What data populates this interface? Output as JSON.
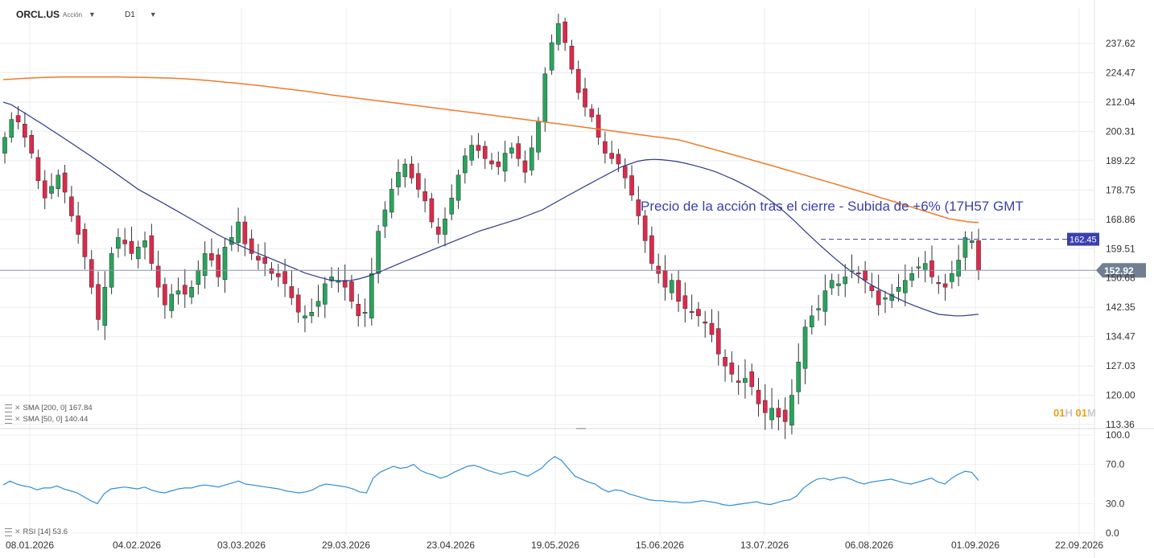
{
  "header": {
    "symbol": "ORCL.US",
    "asset_type": "Acción",
    "timeframe": "D1"
  },
  "indicators": {
    "sma200": "SMA [200, 0] 167.84",
    "sma50": "SMA [50, 0] 140.44",
    "rsi": "RSI [14] 53.6"
  },
  "timeframe_toggle": {
    "num1": "01",
    "unit1": "H",
    "num2": "01",
    "unit2": "M"
  },
  "colors": {
    "up": "#26a65b",
    "down": "#e0284a",
    "sma200": "#f07a2a",
    "sma50": "#2d3a8c",
    "rsi": "#2f8fd8",
    "annotation": "#3a3fae",
    "last_price_box": "#708090",
    "marker_box": "#3a3fae"
  },
  "chart_data": [
    {
      "type": "candlestick",
      "title": "",
      "ylim": [
        113.36,
        245
      ],
      "y_ticks": [
        237.62,
        224.47,
        212.04,
        200.31,
        189.22,
        178.75,
        168.86,
        159.51,
        150.68,
        142.35,
        134.47,
        127.03,
        120.0,
        113.36
      ],
      "y_tick_labels": [
        "237.62",
        "224.47",
        "212.04",
        "200.31",
        "189.22",
        "178.75",
        "168.86",
        "159.51",
        "150.68",
        "142.35",
        "134.47",
        "127.03",
        "120.00",
        "113.36"
      ],
      "x_labels": [
        "08.01.2026",
        "04.02.2026",
        "03.03.2026",
        "29.03.2026",
        "23.04.2026",
        "19.05.2026",
        "15.06.2026",
        "13.07.2026",
        "06.08.2026",
        "01.09.2026",
        "22.09.2026"
      ],
      "last_price": 152.92,
      "last_price_label": "152.92",
      "marker_price": 162.45,
      "marker_label": "162.45",
      "annotation": "Precio de la acción tras el cierre - Subida de +6% (17H57 GMT",
      "candles_close": [
        198,
        205,
        204,
        198,
        192,
        182,
        176,
        180,
        184,
        178,
        170,
        164,
        157,
        148,
        139,
        148,
        158,
        163,
        161,
        158,
        160,
        162,
        155,
        148,
        143,
        146,
        147,
        146,
        148,
        153,
        158,
        156,
        151,
        160,
        163,
        168,
        161,
        158,
        156,
        155,
        152,
        151,
        149,
        145,
        141,
        140,
        141,
        144,
        149,
        151,
        150,
        148,
        144,
        140,
        141,
        152,
        165,
        172,
        179,
        185,
        188,
        183,
        179,
        175,
        168,
        164,
        169,
        176,
        184,
        191,
        195,
        193,
        190,
        188,
        187,
        192,
        194,
        190,
        185,
        194,
        204,
        224,
        238,
        247,
        238,
        226,
        216,
        210,
        206,
        198,
        192,
        190,
        188,
        183,
        177,
        170,
        162,
        155,
        152,
        148,
        150,
        144,
        142,
        141,
        140,
        138,
        135,
        130,
        127,
        125,
        123,
        124,
        122,
        118,
        116,
        117,
        115,
        114,
        120,
        128,
        137,
        140,
        142,
        147,
        150,
        149,
        151,
        153,
        152,
        150,
        147,
        143,
        145,
        146,
        148,
        150,
        152,
        154,
        155,
        151,
        149,
        148,
        152,
        156,
        163,
        162,
        153
      ],
      "sma50": [
        212,
        211,
        209,
        207,
        205,
        203,
        201,
        199,
        197,
        195,
        193,
        191,
        189,
        187,
        185,
        183,
        181,
        179,
        177.5,
        176,
        174.5,
        173,
        171.5,
        170,
        168.5,
        167,
        165.5,
        164,
        162.7,
        161.5,
        160.3,
        159.2,
        158.2,
        157.2,
        156.2,
        155.2,
        154.2,
        153.2,
        152.2,
        151.5,
        150.8,
        150.2,
        149.9,
        149.8,
        150.0,
        150.5,
        151.2,
        152.0,
        153.0,
        154.0,
        155.0,
        156.0,
        157.0,
        158.0,
        159.0,
        160.0,
        161.0,
        162.0,
        163.0,
        164.0,
        165.0,
        165.8,
        166.6,
        167.4,
        168.2,
        169.0,
        170.0,
        171.0,
        172.0,
        173.5,
        175.0,
        176.5,
        178.0,
        179.5,
        181.0,
        182.5,
        184.0,
        185.5,
        187.0,
        188.0,
        189.0,
        189.5,
        189.7,
        189.6,
        189.3,
        188.9,
        188.3,
        187.6,
        186.8,
        186.0,
        185.0,
        183.8,
        182.6,
        181.2,
        179.8,
        178.2,
        176.5,
        174.6,
        172.5,
        170.2,
        167.8,
        165.3,
        162.9,
        160.6,
        158.4,
        156.3,
        154.3,
        152.5,
        150.9,
        149.3,
        148.0,
        146.8,
        145.7,
        144.6,
        143.6,
        142.7,
        141.9,
        141.1,
        140.4,
        140.2,
        140.0,
        140.0,
        140.2,
        140.44
      ],
      "sma200": [
        221.5,
        221.7,
        222.0,
        222.2,
        222.4,
        222.5,
        222.6,
        222.6,
        222.6,
        222.6,
        222.6,
        222.6,
        222.6,
        222.5,
        222.5,
        222.4,
        222.3,
        222.2,
        222.0,
        221.8,
        221.5,
        221.2,
        220.8,
        220.4,
        220.0,
        219.6,
        219.2,
        218.7,
        218.2,
        217.7,
        217.2,
        216.7,
        216.2,
        215.6,
        215.0,
        214.5,
        214.0,
        213.5,
        213.0,
        212.5,
        212.0,
        211.5,
        211.0,
        210.5,
        210.0,
        209.5,
        209.0,
        208.5,
        208.0,
        207.5,
        207.0,
        206.5,
        206.0,
        205.5,
        205.0,
        204.5,
        204.0,
        203.5,
        203.0,
        202.5,
        202.0,
        201.5,
        201.0,
        200.5,
        200.0,
        199.5,
        199.0,
        198.5,
        198.0,
        197.5,
        197.0,
        196.0,
        195.0,
        194.0,
        193.0,
        192.0,
        191.0,
        190.0,
        189.0,
        188.0,
        187.0,
        186.0,
        185.0,
        184.0,
        183.0,
        182.0,
        181.0,
        180.0,
        179.0,
        178.0,
        177.0,
        176.0,
        175.0,
        174.0,
        173.0,
        172.0,
        171.0,
        170.0,
        169.0,
        168.5,
        168.0,
        167.84
      ]
    },
    {
      "type": "line",
      "title": "",
      "series": [
        {
          "name": "RSI [14]",
          "values": [
            49,
            53,
            50,
            48,
            47,
            44,
            46,
            46,
            48,
            45,
            43,
            41,
            37,
            33,
            30,
            40,
            45,
            46,
            47,
            46,
            45,
            47,
            44,
            42,
            41,
            43,
            45,
            46,
            46,
            48,
            49,
            48,
            47,
            49,
            51,
            53,
            50,
            49,
            48,
            47,
            46,
            45,
            43,
            42,
            41,
            42,
            44,
            48,
            50,
            49,
            48,
            47,
            45,
            42,
            41,
            56,
            62,
            65,
            68,
            66,
            67,
            70,
            64,
            61,
            59,
            56,
            58,
            62,
            65,
            68,
            69,
            67,
            64,
            62,
            60,
            62,
            63,
            60,
            58,
            62,
            66,
            73,
            78,
            74,
            66,
            58,
            55,
            52,
            50,
            45,
            42,
            44,
            43,
            40,
            38,
            36,
            34,
            33,
            33,
            32,
            32,
            31,
            31,
            32,
            33,
            32,
            31,
            29,
            28,
            29,
            30,
            31,
            32,
            30,
            29,
            31,
            33,
            34,
            38,
            46,
            51,
            55,
            56,
            54,
            56,
            57,
            55,
            52,
            50,
            52,
            53,
            54,
            55,
            53,
            51,
            50,
            52,
            54,
            56,
            52,
            50,
            56,
            60,
            63,
            62,
            53.6
          ]
        }
      ],
      "ylim": [
        0,
        100
      ],
      "y_ticks": [
        100,
        70,
        30,
        0
      ],
      "y_tick_labels": [
        "100.0",
        "70.0",
        "30.0",
        "0.0"
      ]
    }
  ]
}
